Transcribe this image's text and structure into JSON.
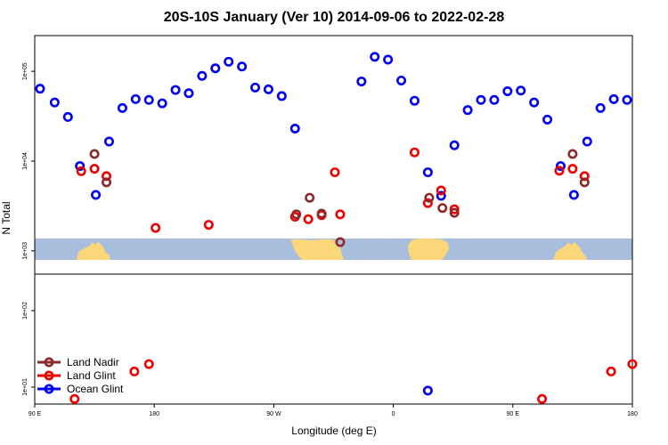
{
  "chart_data": {
    "type": "scatter",
    "title": "20S-10S January (Ver 10)   2014-09-06 to 2022-02-28",
    "xlabel": "Longitude (deg E)",
    "ylabel": "N Total",
    "x_ticks": [
      {
        "value": 90,
        "label": "90 E"
      },
      {
        "value": 180,
        "label": "180"
      },
      {
        "value": 270,
        "label": "90 W"
      },
      {
        "value": 360,
        "label": "0"
      },
      {
        "value": 450,
        "label": "90 E"
      },
      {
        "value": 540,
        "label": "180"
      }
    ],
    "xlim": [
      90,
      540
    ],
    "upper_panel": {
      "y_scale": "log",
      "ylim": [
        550,
        250000
      ],
      "y_ticks": [
        {
          "value": 1000,
          "label": "1e+03"
        },
        {
          "value": 10000,
          "label": "1e+04"
        },
        {
          "value": 100000,
          "label": "1e+05"
        }
      ]
    },
    "lower_panel": {
      "y_scale": "log",
      "ylim": [
        6,
        300
      ],
      "y_ticks": [
        {
          "value": 10,
          "label": "1e+01"
        },
        {
          "value": 100,
          "label": "1e+02"
        }
      ]
    },
    "legend": {
      "position": "bottom-left",
      "entries": [
        {
          "name": "Land Nadir",
          "color": "#8b2a2a"
        },
        {
          "name": "Land Glint",
          "color": "#ee0000"
        },
        {
          "name": "Ocean Glint",
          "color": "#0000ee"
        }
      ]
    },
    "map_colors": {
      "ocean": "#a9bedc",
      "land": "#fbd77a"
    },
    "series": [
      {
        "name": "Ocean Glint",
        "color": "#0000ee",
        "upper": [
          [
            94,
            64000
          ],
          [
            105,
            45000
          ],
          [
            115,
            31000
          ],
          [
            124,
            8800
          ],
          [
            136,
            4200
          ],
          [
            146,
            16500
          ],
          [
            156,
            39000
          ],
          [
            166,
            49000
          ],
          [
            176,
            48000
          ],
          [
            186,
            44000
          ],
          [
            196,
            62000
          ],
          [
            206,
            57000
          ],
          [
            216,
            89000
          ],
          [
            226,
            108000
          ],
          [
            236,
            128000
          ],
          [
            246,
            113000
          ],
          [
            256,
            66000
          ],
          [
            266,
            63000
          ],
          [
            276,
            53000
          ],
          [
            286,
            23000
          ],
          [
            336,
            77000
          ],
          [
            346,
            145000
          ],
          [
            356,
            135000
          ],
          [
            366,
            79000
          ],
          [
            376,
            47000
          ],
          [
            386,
            7500
          ],
          [
            396,
            4100
          ],
          [
            406,
            15000
          ],
          [
            416,
            37000
          ],
          [
            426,
            48000
          ],
          [
            436,
            48000
          ],
          [
            446,
            60000
          ],
          [
            456,
            61000
          ],
          [
            466,
            45000
          ],
          [
            476,
            29000
          ],
          [
            486,
            8800
          ],
          [
            496,
            4200
          ],
          [
            506,
            16500
          ],
          [
            516,
            39000
          ],
          [
            526,
            49000
          ],
          [
            536,
            48000
          ]
        ],
        "lower": [
          [
            386,
            9
          ]
        ]
      },
      {
        "name": "Land Glint",
        "color": "#ee0000",
        "upper": [
          [
            125,
            7700
          ],
          [
            135,
            8200
          ],
          [
            144,
            6800
          ],
          [
            181,
            1800
          ],
          [
            221,
            1950
          ],
          [
            286,
            2400
          ],
          [
            296,
            2250
          ],
          [
            306,
            2500
          ],
          [
            316,
            7500
          ],
          [
            320,
            2550
          ],
          [
            376,
            12500
          ],
          [
            386,
            3400
          ],
          [
            396,
            4700
          ],
          [
            406,
            2900
          ],
          [
            485,
            7800
          ],
          [
            495,
            8200
          ],
          [
            504,
            6800
          ]
        ],
        "lower": [
          [
            120,
            7
          ],
          [
            165,
            16
          ],
          [
            176,
            20
          ],
          [
            472,
            7
          ],
          [
            524,
            16
          ],
          [
            540,
            20
          ]
        ]
      },
      {
        "name": "Land Nadir",
        "color": "#8b2a2a",
        "upper": [
          [
            135,
            12000
          ],
          [
            144,
            5800
          ],
          [
            287,
            2550
          ],
          [
            297,
            3900
          ],
          [
            306,
            2600
          ],
          [
            320,
            1250
          ],
          [
            387,
            3900
          ],
          [
            397,
            3000
          ],
          [
            406,
            2650
          ],
          [
            495,
            12000
          ],
          [
            504,
            5800
          ]
        ],
        "lower": []
      }
    ]
  }
}
